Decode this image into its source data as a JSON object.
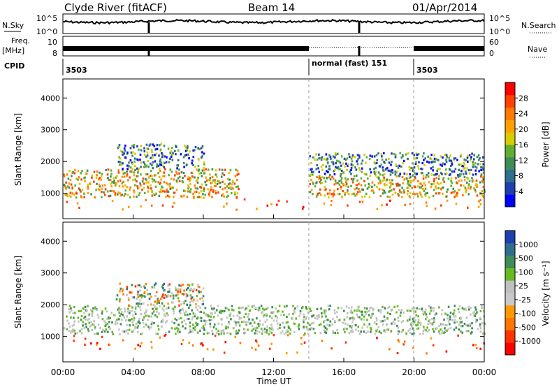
{
  "header": {
    "title": "Clyde River (fitACF)",
    "beam": "Beam 14",
    "date": "01/Apr/2014"
  },
  "strips": {
    "nsky_label": "N.Sky",
    "nsearch_label": "N.Search",
    "freq_label": "Freq.",
    "freq_unit": "[MHz]",
    "nave_label": "Nave",
    "cpid_label": "CPID",
    "nsky_ticks": [
      "10^5",
      "10^0"
    ],
    "nsearch_ticks": [
      "10^5",
      "10^0"
    ],
    "freq_ticks": [
      "10",
      "8"
    ],
    "nave_ticks": [
      "60",
      "0"
    ],
    "cpid_segments": [
      {
        "label": "3503",
        "start_hour": 0
      },
      {
        "label": "normal (fast) 151",
        "start_hour": 14
      },
      {
        "label": "3503",
        "start_hour": 20
      }
    ]
  },
  "colors": {
    "power_scale": [
      "#0000ff",
      "#1e3fb0",
      "#2f6e8c",
      "#3d8c5a",
      "#5fb030",
      "#d9cc00",
      "#ffa000",
      "#ff7a00",
      "#ff4000",
      "#ff0000"
    ],
    "velocity_scale": [
      "#1e3fb0",
      "#2f6e8c",
      "#3d8c5a",
      "#66bb22",
      "#c0c0c0",
      "#c8c8c8",
      "#ff9900",
      "#ff7700",
      "#ff3300",
      "#ff0000"
    ]
  },
  "chart_data": [
    {
      "type": "heatmap",
      "name": "power",
      "xlabel": "",
      "ylabel": "Slant Range [km]",
      "xlim_hours": [
        0,
        24
      ],
      "ylim": [
        200,
        4600
      ],
      "yticks": [
        1000,
        2000,
        3000,
        4000
      ],
      "colorbar": {
        "label": "Power [dB]",
        "ticks": [
          "28",
          "24",
          "20",
          "16",
          "12",
          "8",
          "4"
        ],
        "range": [
          0,
          32
        ]
      },
      "scatter_bands": [
        {
          "t0": 0,
          "t1": 24,
          "r0": 500,
          "r1": 900,
          "level": "high"
        },
        {
          "t0": 0,
          "t1": 10,
          "r0": 900,
          "r1": 1800,
          "level": "mid"
        },
        {
          "t0": 3,
          "t1": 8,
          "r0": 1800,
          "r1": 2600,
          "level": "low"
        },
        {
          "t0": 14,
          "t1": 24,
          "r0": 900,
          "r1": 1600,
          "level": "mid"
        },
        {
          "t0": 14,
          "t1": 24,
          "r0": 1600,
          "r1": 2300,
          "level": "low"
        }
      ]
    },
    {
      "type": "heatmap",
      "name": "velocity",
      "xlabel": "Time UT",
      "ylabel": "Slant Range [km]",
      "xticks": [
        "00:00",
        "04:00",
        "08:00",
        "12:00",
        "16:00",
        "20:00",
        "00:00"
      ],
      "xlim_hours": [
        0,
        24
      ],
      "ylim": [
        200,
        4600
      ],
      "yticks": [
        1000,
        2000,
        3000,
        4000
      ],
      "colorbar": {
        "label": "Velocity [m s⁻¹]",
        "ticks": [
          "1000",
          "500",
          "100",
          "25",
          "-25",
          "-100",
          "-500",
          "-1000"
        ],
        "range": [
          -1000,
          1000
        ]
      },
      "scatter_bands": [
        {
          "t0": 0,
          "t1": 24,
          "r0": 500,
          "r1": 1100,
          "level": "negative"
        },
        {
          "t0": 0,
          "t1": 24,
          "r0": 1100,
          "r1": 2000,
          "level": "near-zero"
        },
        {
          "t0": 3,
          "t1": 8,
          "r0": 2000,
          "r1": 2700,
          "level": "mixed"
        }
      ]
    }
  ]
}
